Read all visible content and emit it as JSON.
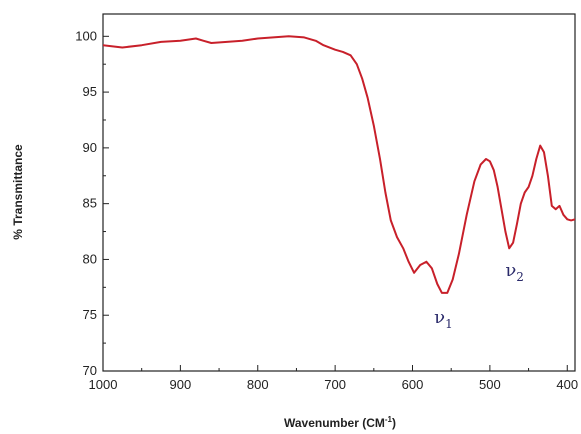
{
  "chart_data": {
    "type": "line",
    "xlabel_main": "Wavenumber (CM",
    "xlabel_sup": "-1",
    "xlabel_end": ")",
    "ylabel": "% Transmittance",
    "xlim": [
      1000,
      390
    ],
    "ylim": [
      70,
      102
    ],
    "x_ticks": [
      1000,
      900,
      800,
      700,
      600,
      500,
      400
    ],
    "y_ticks": [
      70,
      75,
      80,
      85,
      90,
      95,
      100
    ],
    "grid": false,
    "line_color": "#c8202a",
    "annotations": [
      {
        "base": "ν",
        "sub": "1",
        "x": 560,
        "y": 74.3
      },
      {
        "base": "ν",
        "sub": "2",
        "x": 468,
        "y": 78.5
      }
    ],
    "series": [
      {
        "x": [
          1000,
          975,
          950,
          925,
          900,
          880,
          870,
          860,
          840,
          820,
          800,
          780,
          760,
          740,
          725,
          715,
          700,
          690,
          680,
          672,
          665,
          658,
          650,
          642,
          635,
          628,
          620,
          612,
          605,
          598,
          590,
          582,
          575,
          568,
          562,
          555,
          548,
          540,
          530,
          520,
          512,
          505,
          500,
          495,
          490,
          485,
          480,
          475,
          470,
          465,
          460,
          455,
          450,
          445,
          440,
          435,
          430,
          425,
          420,
          415,
          410,
          405,
          400,
          395,
          390
        ],
        "y": [
          99.2,
          99.0,
          99.2,
          99.5,
          99.6,
          99.8,
          99.6,
          99.4,
          99.5,
          99.6,
          99.8,
          99.9,
          100.0,
          99.9,
          99.6,
          99.2,
          98.8,
          98.6,
          98.3,
          97.5,
          96.2,
          94.5,
          92.0,
          89.0,
          86.0,
          83.5,
          82.0,
          81.0,
          79.8,
          78.8,
          79.5,
          79.8,
          79.2,
          77.8,
          77.0,
          77.0,
          78.2,
          80.5,
          84.0,
          87.0,
          88.5,
          89.0,
          88.8,
          88.0,
          86.5,
          84.5,
          82.5,
          81.0,
          81.5,
          83.2,
          85.0,
          86.0,
          86.5,
          87.5,
          89.0,
          90.2,
          89.6,
          87.5,
          84.8,
          84.5,
          84.8,
          84.0,
          83.6,
          83.5,
          83.6
        ]
      }
    ]
  }
}
